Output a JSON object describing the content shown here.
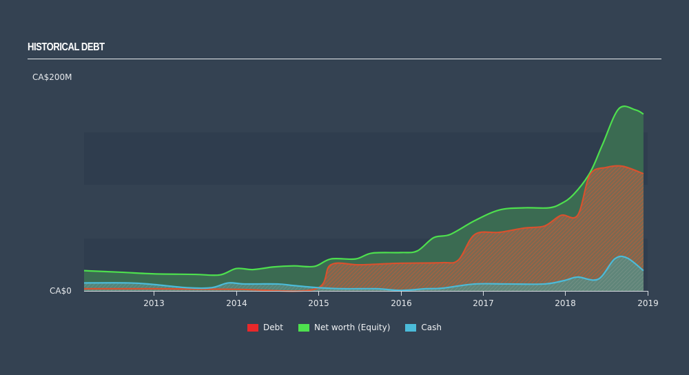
{
  "header": {
    "title": "HISTORICAL DEBT"
  },
  "colors": {
    "background": "#344252",
    "debt": "#e8282a",
    "debt_line": "#d9512e",
    "equity": "#4ee04e",
    "equity_fill": "#3b6b52",
    "cash": "#4bbbd9"
  },
  "legend": {
    "items": [
      {
        "label": "Debt",
        "color": "#e8282a"
      },
      {
        "label": "Net worth (Equity)",
        "color": "#4ee04e"
      },
      {
        "label": "Cash",
        "color": "#4bbbd9"
      }
    ]
  },
  "chart_data": {
    "type": "area",
    "title": "HISTORICAL DEBT",
    "xlabel": "",
    "ylabel": "",
    "y_tick_labels": [
      "CA$0",
      "CA$200M"
    ],
    "ylim": [
      0,
      200
    ],
    "x_tick_labels": [
      "2013",
      "2014",
      "2015",
      "2016",
      "2017",
      "2018",
      "2019"
    ],
    "xlim": [
      2012.15,
      2019.1
    ],
    "grid": "horizontal bands",
    "legend_position": "bottom",
    "units": "CA$M",
    "series": [
      {
        "name": "Net worth (Equity)",
        "points": [
          [
            2012.15,
            19
          ],
          [
            2012.6,
            17.5
          ],
          [
            2013.0,
            16
          ],
          [
            2013.5,
            15.5
          ],
          [
            2013.8,
            15
          ],
          [
            2014.0,
            21
          ],
          [
            2014.2,
            20
          ],
          [
            2014.45,
            22.5
          ],
          [
            2014.7,
            23.5
          ],
          [
            2014.95,
            23
          ],
          [
            2015.15,
            30
          ],
          [
            2015.45,
            30
          ],
          [
            2015.65,
            35.5
          ],
          [
            2016.0,
            36
          ],
          [
            2016.2,
            37.5
          ],
          [
            2016.4,
            50
          ],
          [
            2016.6,
            53
          ],
          [
            2016.9,
            66
          ],
          [
            2017.2,
            76
          ],
          [
            2017.5,
            78
          ],
          [
            2017.8,
            78
          ],
          [
            2017.95,
            82
          ],
          [
            2018.1,
            90.5
          ],
          [
            2018.3,
            111
          ],
          [
            2018.45,
            137
          ],
          [
            2018.65,
            171
          ],
          [
            2018.85,
            170
          ],
          [
            2018.95,
            166
          ]
        ]
      },
      {
        "name": "Debt",
        "points": [
          [
            2012.15,
            2
          ],
          [
            2013.0,
            2
          ],
          [
            2014.0,
            1.5
          ],
          [
            2014.95,
            1.5
          ],
          [
            2015.15,
            24.5
          ],
          [
            2015.5,
            24.5
          ],
          [
            2016.0,
            26
          ],
          [
            2016.5,
            26.5
          ],
          [
            2016.7,
            29
          ],
          [
            2016.9,
            53
          ],
          [
            2017.2,
            55
          ],
          [
            2017.5,
            59
          ],
          [
            2017.75,
            61
          ],
          [
            2017.95,
            71
          ],
          [
            2018.15,
            71
          ],
          [
            2018.3,
            109
          ],
          [
            2018.5,
            116
          ],
          [
            2018.7,
            117
          ],
          [
            2018.95,
            110
          ]
        ]
      },
      {
        "name": "Cash",
        "points": [
          [
            2012.15,
            7.5
          ],
          [
            2012.7,
            7.5
          ],
          [
            2013.0,
            6
          ],
          [
            2013.4,
            3
          ],
          [
            2013.7,
            3
          ],
          [
            2013.9,
            7.5
          ],
          [
            2014.1,
            6.5
          ],
          [
            2014.5,
            6.5
          ],
          [
            2014.7,
            5
          ],
          [
            2015.0,
            3
          ],
          [
            2015.3,
            2
          ],
          [
            2015.7,
            2
          ],
          [
            2016.0,
            0.5
          ],
          [
            2016.3,
            2
          ],
          [
            2016.5,
            2.5
          ],
          [
            2016.9,
            6.5
          ],
          [
            2017.3,
            6.5
          ],
          [
            2017.75,
            6.5
          ],
          [
            2018.0,
            10
          ],
          [
            2018.15,
            13
          ],
          [
            2018.4,
            11
          ],
          [
            2018.6,
            30
          ],
          [
            2018.75,
            31
          ],
          [
            2018.95,
            19
          ]
        ]
      }
    ]
  }
}
